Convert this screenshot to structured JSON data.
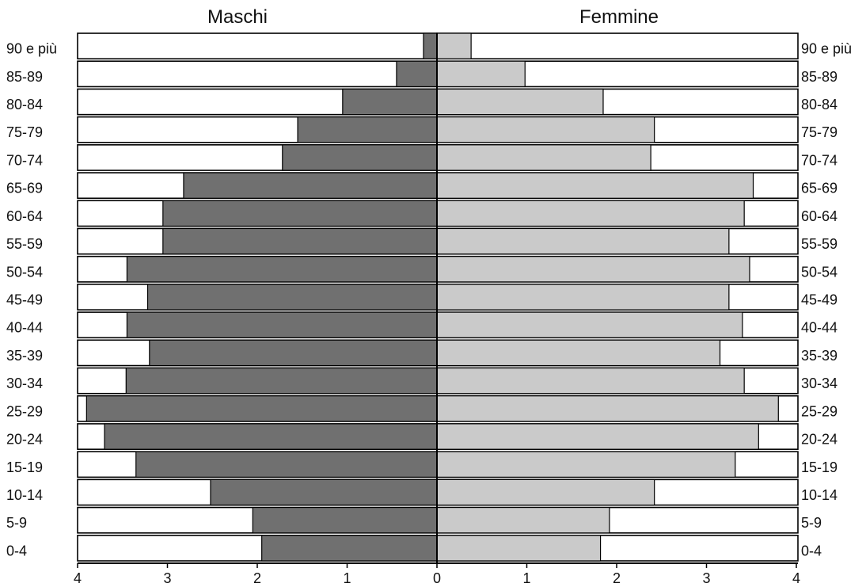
{
  "chart_data": {
    "type": "bar",
    "title": "",
    "xlabel": "",
    "ylabel": "",
    "left_header": "Maschi",
    "right_header": "Femmine",
    "categories": [
      "90 e più",
      "85-89",
      "80-84",
      "75-79",
      "70-74",
      "65-69",
      "60-64",
      "55-59",
      "50-54",
      "45-49",
      "40-44",
      "35-39",
      "30-34",
      "25-29",
      "20-24",
      "15-19",
      "10-14",
      "5-9",
      "0-4"
    ],
    "series": [
      {
        "name": "Maschi",
        "values": [
          0.15,
          0.45,
          1.05,
          1.55,
          1.72,
          2.82,
          3.05,
          3.05,
          3.45,
          3.22,
          3.45,
          3.2,
          3.46,
          3.9,
          3.7,
          3.35,
          2.52,
          2.05,
          1.95
        ],
        "color": "#707070"
      },
      {
        "name": "Femmine",
        "values": [
          0.38,
          0.98,
          1.85,
          2.42,
          2.38,
          3.52,
          3.42,
          3.25,
          3.48,
          3.25,
          3.4,
          3.15,
          3.42,
          3.8,
          3.58,
          3.32,
          2.42,
          1.92,
          1.82
        ],
        "color": "#cacaca"
      }
    ],
    "xlim": [
      0,
      4
    ],
    "x_ticks_left": [
      "4",
      "3",
      "2",
      "1"
    ],
    "x_ticks_right": [
      "0",
      "1",
      "2",
      "3",
      "4"
    ],
    "grid": false,
    "legend": "none"
  }
}
